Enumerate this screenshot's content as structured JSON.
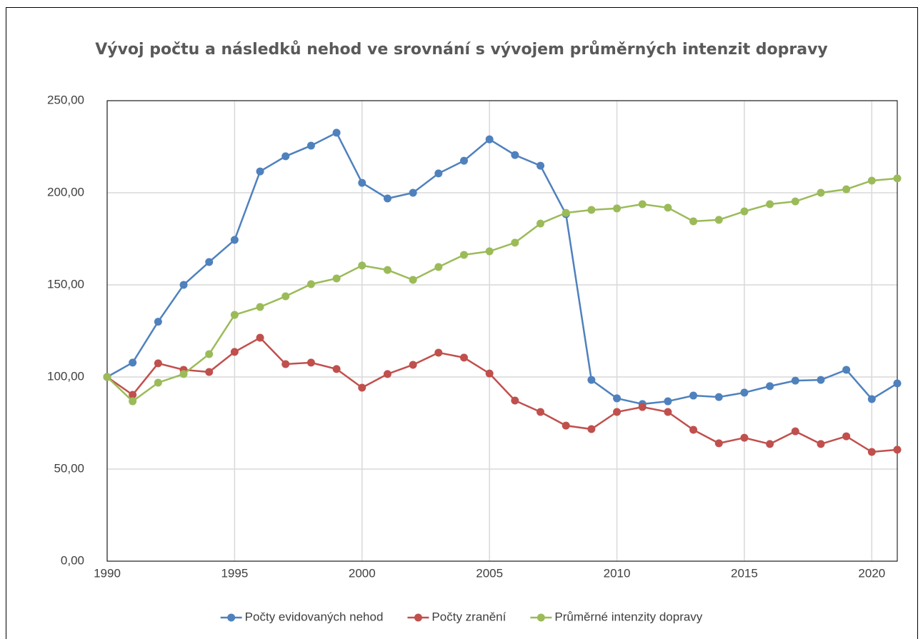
{
  "chart_data": {
    "type": "line",
    "title": "Vývoj počtu a následků nehod ve srovnání s vývojem průměrných intenzit dopravy",
    "x": [
      1990,
      1991,
      1992,
      1993,
      1994,
      1995,
      1996,
      1997,
      1998,
      1999,
      2000,
      2001,
      2002,
      2003,
      2004,
      2005,
      2006,
      2007,
      2008,
      2009,
      2010,
      2011,
      2012,
      2013,
      2014,
      2015,
      2016,
      2017,
      2018,
      2019,
      2020,
      2021
    ],
    "series": [
      {
        "name": "Počty evidovaných nehod",
        "color": "#4f81bd",
        "values": [
          100,
          107.8,
          130,
          150,
          162.4,
          174.4,
          211.6,
          219.8,
          225.6,
          232.6,
          205.4,
          196.9,
          200,
          210.5,
          217.4,
          229,
          220.5,
          214.7,
          188.4,
          98.4,
          88.4,
          85.3,
          86.8,
          89.9,
          89.1,
          91.5,
          95,
          98,
          98.4,
          103.9,
          88,
          96.5
        ]
      },
      {
        "name": "Počty zranění",
        "color": "#c0504d",
        "values": [
          100,
          90.3,
          107.4,
          103.9,
          102.7,
          113.6,
          121.3,
          107,
          107.8,
          104.3,
          94.2,
          101.6,
          106.6,
          113.2,
          110.5,
          101.9,
          87.2,
          81,
          73.6,
          71.7,
          81,
          83.7,
          81,
          71.3,
          64,
          67,
          63.6,
          70.5,
          63.6,
          67.8,
          59.3,
          60.5
        ]
      },
      {
        "name": "Průměrné intenzity dopravy",
        "color": "#9bbb59",
        "values": [
          100,
          86.8,
          96.9,
          101.6,
          112.4,
          133.7,
          138,
          143.8,
          150.4,
          153.5,
          160.5,
          158.1,
          152.7,
          159.7,
          166.3,
          168.2,
          172.9,
          183.3,
          189.1,
          190.7,
          191.5,
          193.8,
          191.9,
          184.5,
          185.3,
          189.9,
          193.8,
          195.3,
          200,
          201.9,
          206.6,
          207.8
        ]
      }
    ],
    "xlim": [
      1990,
      2021
    ],
    "xticks": [
      1990,
      1995,
      2000,
      2005,
      2010,
      2015,
      2020
    ],
    "ylim": [
      0,
      250
    ],
    "yticks": [
      {
        "value": 0,
        "label": "0,00"
      },
      {
        "value": 50,
        "label": "50,00"
      },
      {
        "value": 100,
        "label": "100,00"
      },
      {
        "value": 150,
        "label": "150,00"
      },
      {
        "value": 200,
        "label": "200,00"
      },
      {
        "value": 250,
        "label": "250,00"
      }
    ],
    "grid": true,
    "legend": "bottom"
  }
}
